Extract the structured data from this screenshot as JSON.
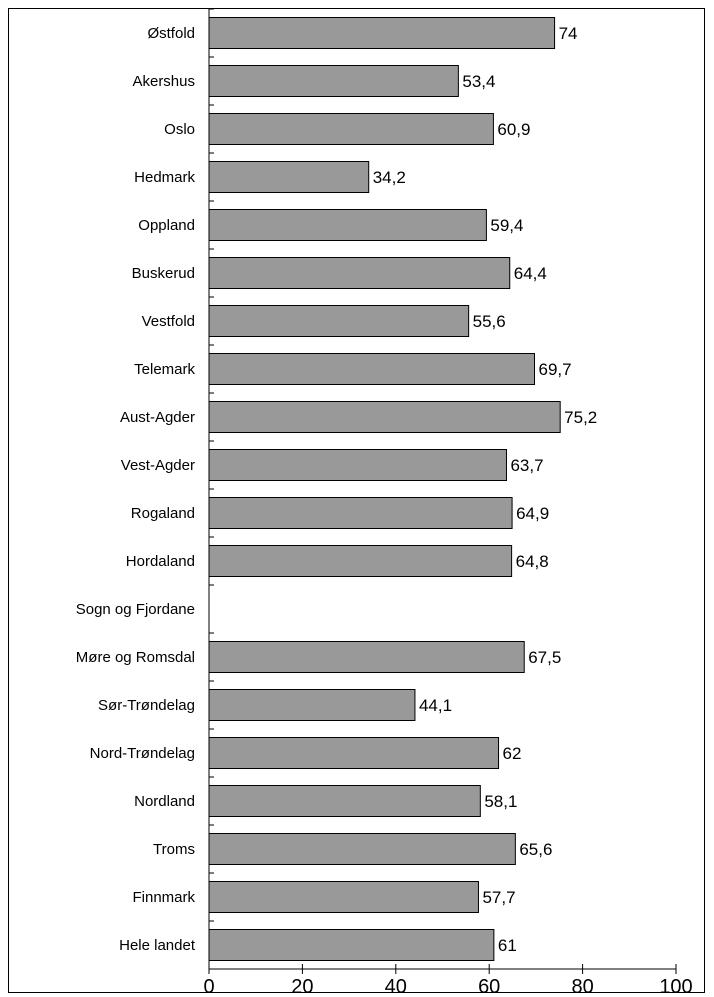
{
  "chart_data": {
    "type": "bar",
    "orientation": "horizontal",
    "title": "",
    "xlabel": "",
    "ylabel": "",
    "xlim": [
      0,
      100
    ],
    "xticks": [
      0,
      20,
      40,
      60,
      80,
      100
    ],
    "grid": false,
    "legend": "none",
    "bar_color": "#999999",
    "categories": [
      "Østfold",
      "Akershus",
      "Oslo",
      "Hedmark",
      "Oppland",
      "Buskerud",
      "Vestfold",
      "Telemark",
      "Aust-Agder",
      "Vest-Agder",
      "Rogaland",
      "Hordaland",
      "Sogn og Fjordane",
      "Møre og Romsdal",
      "Sør-Trøndelag",
      "Nord-Trøndelag",
      "Nordland",
      "Troms",
      "Finnmark",
      "Hele landet"
    ],
    "values": [
      74,
      53.4,
      60.9,
      34.2,
      59.4,
      64.4,
      55.6,
      69.7,
      75.2,
      63.7,
      64.9,
      64.8,
      null,
      67.5,
      44.1,
      62,
      58.1,
      65.6,
      57.7,
      61
    ],
    "value_labels": [
      "74",
      "53,4",
      "60,9",
      "34,2",
      "59,4",
      "64,4",
      "55,6",
      "69,7",
      "75,2",
      "63,7",
      "64,9",
      "64,8",
      "",
      "67,5",
      "44,1",
      "62",
      "58,1",
      "65,6",
      "57,7",
      "61"
    ]
  }
}
